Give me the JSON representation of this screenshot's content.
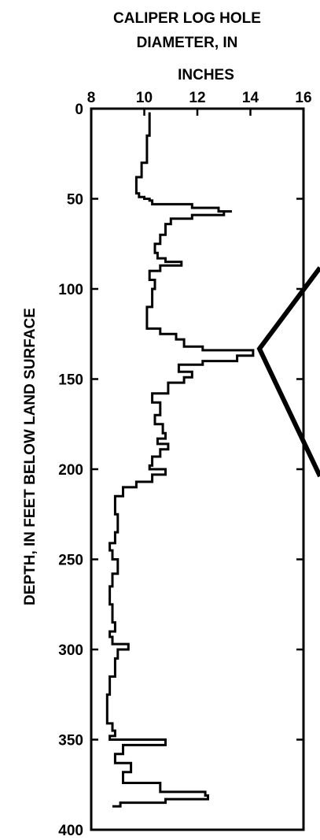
{
  "chart_data": {
    "type": "line",
    "title": [
      "CALIPER LOG HOLE",
      "DIAMETER, IN"
    ],
    "xlabel": "INCHES",
    "ylabel": "DEPTH, IN FEET BELOW LAND SURFACE",
    "xlim": [
      8,
      16
    ],
    "ylim": [
      0,
      400
    ],
    "y_inverted": true,
    "x_ticks": [
      "8",
      "10",
      "12",
      "14",
      "16"
    ],
    "y_ticks": [
      "0",
      "50",
      "100",
      "150",
      "200",
      "250",
      "300",
      "350",
      "400"
    ],
    "grid": false,
    "series": [
      {
        "x": [
          10.2,
          10.1,
          10.1,
          9.9,
          9.7,
          9.7,
          9.8,
          10.0,
          10.2,
          10.3,
          11.8,
          12.8,
          13.3,
          13.0,
          11.8,
          11.0,
          10.8,
          10.6,
          10.4,
          10.5,
          10.8,
          11.4,
          10.6,
          10.2,
          10.4,
          10.3,
          10.1,
          10.1,
          10.6,
          11.2,
          11.5,
          12.2,
          13.4,
          14.1,
          13.5,
          12.2,
          11.3,
          11.8,
          11.5,
          10.9,
          10.3,
          10.6,
          10.4,
          10.7,
          10.8,
          10.5,
          10.9,
          10.6,
          10.3,
          10.2,
          10.8,
          10.3,
          9.7,
          9.2,
          8.9,
          9.0,
          8.9,
          8.7,
          8.8,
          9.0,
          8.8,
          8.7,
          8.8,
          8.9,
          8.7,
          8.8,
          9.4,
          9.0,
          8.9,
          8.7,
          8.6,
          8.6,
          8.8,
          8.9,
          8.7,
          10.8,
          9.2,
          8.9,
          9.5,
          9.2,
          10.6,
          12.3,
          12.4,
          10.8,
          9.1,
          8.8
        ],
        "y": [
          2,
          15,
          25,
          30,
          38,
          43,
          47,
          49,
          50,
          51,
          53,
          55,
          57,
          57,
          59,
          61,
          64,
          70,
          75,
          80,
          83,
          85,
          87,
          90,
          95,
          100,
          110,
          118,
          122,
          125,
          128,
          132,
          134,
          134,
          137,
          140,
          142,
          146,
          149,
          152,
          158,
          163,
          170,
          175,
          180,
          183,
          186,
          189,
          193,
          198,
          200,
          203,
          207,
          210,
          215,
          225,
          235,
          241,
          245,
          250,
          258,
          265,
          275,
          285,
          290,
          293,
          297,
          300,
          305,
          315,
          325,
          335,
          341,
          345,
          348,
          350,
          353,
          358,
          363,
          368,
          374,
          379,
          381,
          383,
          385,
          387
        ]
      }
    ]
  }
}
